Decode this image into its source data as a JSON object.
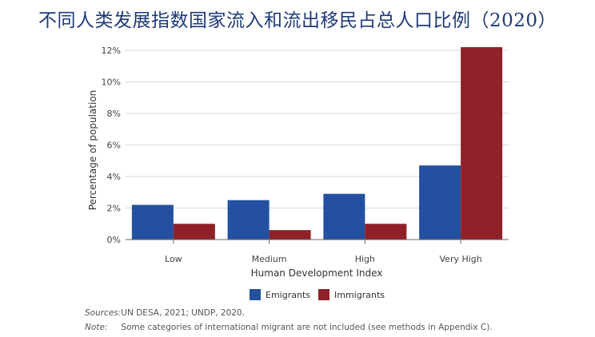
{
  "title": "不同人类发展指数国家流入和流出移民占总人口比例（2020）",
  "chart_data": {
    "type": "bar",
    "categories": [
      "Low",
      "Medium",
      "High",
      "Very High"
    ],
    "series": [
      {
        "name": "Emigrants",
        "color": "#2350a0",
        "values": [
          2.2,
          2.5,
          2.9,
          4.7
        ]
      },
      {
        "name": "Immigrants",
        "color": "#8e2228",
        "values": [
          1.0,
          0.6,
          1.0,
          12.2
        ]
      }
    ],
    "ylim": [
      0,
      12
    ],
    "yticks": [
      "0%",
      "2%",
      "4%",
      "6%",
      "8%",
      "10%",
      "12%"
    ],
    "ytick_values": [
      0,
      2,
      4,
      6,
      8,
      10,
      12
    ],
    "xlabel": "Human Development Index",
    "ylabel": "Percentage of population",
    "grid": true,
    "legend_position": "bottom"
  },
  "footer": {
    "sources_label": "Sources:",
    "sources_text": "UN DESA, 2021; UNDP, 2020.",
    "note_label": "Note:",
    "note_text": "Some categories of international migrant are not included (see methods in Appendix C)."
  }
}
